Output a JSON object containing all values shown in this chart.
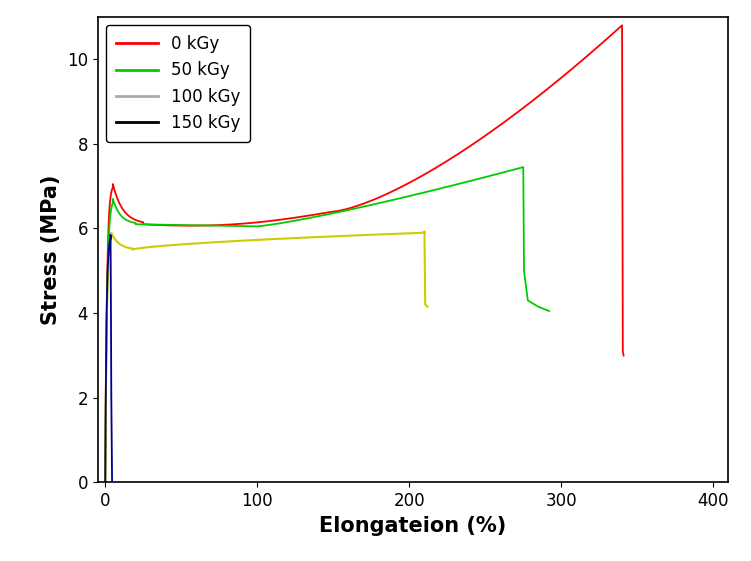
{
  "title": "",
  "xlabel": "Elongateion (%)",
  "ylabel": "Stress (MPa)",
  "xlim": [
    -5,
    410
  ],
  "ylim": [
    0,
    11
  ],
  "yticks": [
    0,
    2,
    4,
    6,
    8,
    10
  ],
  "xticks": [
    0,
    100,
    200,
    300,
    400
  ],
  "legend_labels": [
    "0 kGy",
    "50 kGy",
    "100 kGy",
    "150 kGy"
  ],
  "line_colors": [
    "#ff0000",
    "#00cc00",
    "#cccc00",
    "#00008b"
  ],
  "legend_line_colors": [
    "#ff0000",
    "#00cc00",
    "#aaaaaa",
    "#000000"
  ],
  "background_color": "#ffffff",
  "xlabel_fontsize": 15,
  "ylabel_fontsize": 15,
  "tick_fontsize": 12,
  "legend_fontsize": 12
}
